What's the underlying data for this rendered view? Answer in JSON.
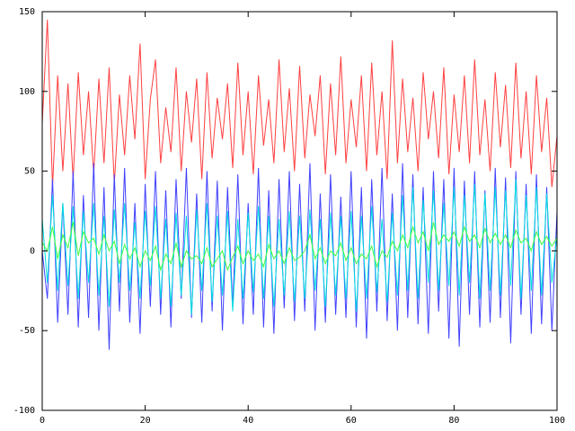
{
  "chart_data": {
    "type": "line",
    "x": [
      0,
      1,
      2,
      3,
      4,
      5,
      6,
      7,
      8,
      9,
      10,
      11,
      12,
      13,
      14,
      15,
      16,
      17,
      18,
      19,
      20,
      21,
      22,
      23,
      24,
      25,
      26,
      27,
      28,
      29,
      30,
      31,
      32,
      33,
      34,
      35,
      36,
      37,
      38,
      39,
      40,
      41,
      42,
      43,
      44,
      45,
      46,
      47,
      48,
      49,
      50,
      51,
      52,
      53,
      54,
      55,
      56,
      57,
      58,
      59,
      60,
      61,
      62,
      63,
      64,
      65,
      66,
      67,
      68,
      69,
      70,
      71,
      72,
      73,
      74,
      75,
      76,
      77,
      78,
      79,
      80,
      81,
      82,
      83,
      84,
      85,
      86,
      87,
      88,
      89,
      90,
      91,
      92,
      93,
      94,
      95,
      96,
      97,
      98,
      99,
      100
    ],
    "series": [
      {
        "color": "#ff4040",
        "values": [
          80,
          145,
          40,
          110,
          50,
          105,
          45,
          112,
          60,
          100,
          48,
          108,
          55,
          115,
          42,
          98,
          60,
          110,
          70,
          130,
          45,
          95,
          120,
          55,
          90,
          62,
          115,
          50,
          100,
          68,
          108,
          45,
          112,
          58,
          96,
          70,
          105,
          52,
          118,
          60,
          100,
          48,
          110,
          66,
          95,
          55,
          120,
          62,
          102,
          50,
          116,
          58,
          98,
          72,
          110,
          48,
          105,
          60,
          122,
          55,
          95,
          65,
          110,
          50,
          118,
          60,
          100,
          45,
          132,
          55,
          108,
          62,
          96,
          50,
          112,
          70,
          100,
          58,
          115,
          48,
          98,
          62,
          110,
          55,
          120,
          60,
          95,
          50,
          112,
          65,
          104,
          52,
          118,
          58,
          100,
          48,
          110,
          62,
          96,
          40,
          72
        ]
      },
      {
        "color": "#4040ff",
        "values": [
          0,
          -30,
          45,
          -45,
          30,
          -40,
          50,
          -48,
          35,
          -42,
          55,
          -50,
          40,
          -62,
          48,
          -38,
          52,
          -45,
          30,
          -52,
          42,
          -35,
          50,
          -40,
          38,
          -48,
          45,
          -30,
          52,
          -42,
          36,
          -45,
          50,
          -38,
          44,
          -50,
          40,
          -35,
          48,
          -46,
          30,
          -40,
          52,
          -48,
          38,
          -52,
          45,
          -36,
          50,
          -44,
          42,
          -38,
          55,
          -50,
          36,
          -45,
          48,
          -40,
          34,
          -42,
          50,
          -48,
          40,
          -55,
          45,
          -38,
          52,
          -44,
          36,
          -50,
          55,
          -42,
          48,
          -46,
          40,
          -52,
          50,
          -38,
          45,
          -55,
          52,
          -60,
          44,
          -40,
          50,
          -48,
          38,
          -45,
          52,
          -42,
          46,
          -58,
          50,
          -40,
          42,
          -52,
          48,
          -46,
          40,
          -50,
          25
        ]
      },
      {
        "color": "#00e0e0",
        "values": [
          20,
          -20,
          35,
          -25,
          30,
          -22,
          28,
          -30,
          25,
          -20,
          30,
          -28,
          22,
          -35,
          26,
          -20,
          30,
          -25,
          18,
          -30,
          25,
          -22,
          28,
          -30,
          20,
          -35,
          24,
          -28,
          22,
          -40,
          26,
          -25,
          30,
          -32,
          22,
          -28,
          25,
          -38,
          20,
          -30,
          24,
          -26,
          28,
          -30,
          22,
          -35,
          20,
          -28,
          25,
          -32,
          22,
          -30,
          26,
          -25,
          20,
          -35,
          24,
          -28,
          22,
          -30,
          25,
          -38,
          22,
          -30,
          28,
          -26,
          20,
          -32,
          24,
          -28,
          35,
          -25,
          40,
          -30,
          32,
          -20,
          38,
          -25,
          30,
          -22,
          40,
          -28,
          35,
          -20,
          42,
          -30,
          36,
          -25,
          40,
          -28,
          38,
          -22,
          45,
          -30,
          35,
          -25,
          40,
          -28,
          36,
          -20,
          10
        ]
      },
      {
        "color": "#40ff40",
        "values": [
          5,
          0,
          15,
          -5,
          10,
          2,
          18,
          -3,
          12,
          5,
          8,
          -2,
          10,
          0,
          6,
          -8,
          4,
          -5,
          2,
          -10,
          0,
          -6,
          3,
          -12,
          -2,
          -8,
          5,
          -10,
          0,
          -5,
          -3,
          -8,
          2,
          -10,
          -5,
          0,
          -12,
          -4,
          3,
          -8,
          0,
          -6,
          -2,
          -10,
          4,
          -5,
          0,
          -8,
          2,
          -6,
          -4,
          0,
          10,
          -5,
          2,
          -8,
          0,
          -3,
          5,
          -6,
          2,
          -8,
          -2,
          -5,
          3,
          -10,
          0,
          -4,
          6,
          0,
          10,
          2,
          15,
          5,
          12,
          0,
          18,
          4,
          10,
          6,
          12,
          3,
          15,
          6,
          10,
          2,
          14,
          5,
          11,
          4,
          10,
          2,
          13,
          5,
          8,
          0,
          12,
          4,
          9,
          3,
          8
        ]
      }
    ],
    "xlim": [
      0,
      100
    ],
    "xticks": [
      0,
      20,
      40,
      60,
      80,
      100
    ],
    "ylim": [
      -100,
      150
    ],
    "yticks": [
      -100,
      -50,
      0,
      50,
      100,
      150
    ]
  }
}
